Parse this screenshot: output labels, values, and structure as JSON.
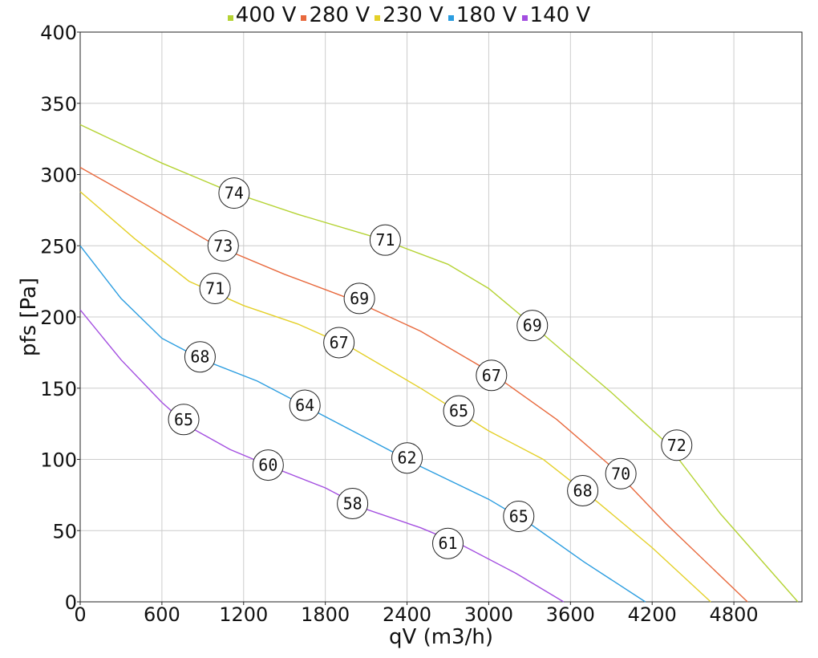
{
  "chart_data": {
    "type": "line",
    "xlabel": "qV (m3/h)",
    "ylabel": "pfs [Pa]",
    "xlim": [
      0,
      5300
    ],
    "ylim": [
      0,
      400
    ],
    "x_ticks": [
      0,
      600,
      1200,
      1800,
      2400,
      3000,
      3600,
      4200,
      4800
    ],
    "y_ticks": [
      0,
      50,
      100,
      150,
      200,
      250,
      300,
      350,
      400
    ],
    "grid": true,
    "legend_position": "top-center",
    "series": [
      {
        "name": "400 V",
        "color": "#b5d334",
        "points": [
          [
            0,
            335
          ],
          [
            600,
            308
          ],
          [
            1100,
            288
          ],
          [
            1600,
            272
          ],
          [
            2200,
            255
          ],
          [
            2700,
            237
          ],
          [
            3000,
            220
          ],
          [
            3300,
            196
          ],
          [
            3900,
            147
          ],
          [
            4300,
            112
          ],
          [
            4700,
            62
          ],
          [
            5270,
            0
          ]
        ],
        "labels": [
          {
            "x": 1130,
            "y": 287,
            "text": "74"
          },
          {
            "x": 2240,
            "y": 254,
            "text": "71"
          },
          {
            "x": 3320,
            "y": 194,
            "text": "69"
          },
          {
            "x": 4380,
            "y": 110,
            "text": "72"
          }
        ]
      },
      {
        "name": "280 V",
        "color": "#e8693d",
        "points": [
          [
            0,
            305
          ],
          [
            500,
            278
          ],
          [
            1000,
            250
          ],
          [
            1500,
            230
          ],
          [
            2000,
            212
          ],
          [
            2500,
            190
          ],
          [
            3000,
            162
          ],
          [
            3500,
            128
          ],
          [
            3900,
            95
          ],
          [
            4300,
            55
          ],
          [
            4900,
            0
          ]
        ],
        "labels": [
          {
            "x": 1050,
            "y": 250,
            "text": "73"
          },
          {
            "x": 2050,
            "y": 213,
            "text": "69"
          },
          {
            "x": 3020,
            "y": 159,
            "text": "67"
          },
          {
            "x": 3970,
            "y": 90,
            "text": "70"
          }
        ]
      },
      {
        "name": "230 V",
        "color": "#e4d028",
        "points": [
          [
            0,
            288
          ],
          [
            400,
            255
          ],
          [
            800,
            225
          ],
          [
            1200,
            208
          ],
          [
            1600,
            195
          ],
          [
            2000,
            178
          ],
          [
            2500,
            150
          ],
          [
            3000,
            120
          ],
          [
            3400,
            100
          ],
          [
            3800,
            70
          ],
          [
            4200,
            38
          ],
          [
            4630,
            0
          ]
        ],
        "labels": [
          {
            "x": 990,
            "y": 220,
            "text": "71"
          },
          {
            "x": 1900,
            "y": 182,
            "text": "67"
          },
          {
            "x": 2780,
            "y": 134,
            "text": "65"
          },
          {
            "x": 3690,
            "y": 78,
            "text": "68"
          }
        ]
      },
      {
        "name": "180 V",
        "color": "#2b9de0",
        "points": [
          [
            0,
            250
          ],
          [
            300,
            213
          ],
          [
            600,
            185
          ],
          [
            900,
            170
          ],
          [
            1300,
            155
          ],
          [
            1700,
            135
          ],
          [
            2100,
            115
          ],
          [
            2500,
            95
          ],
          [
            3000,
            72
          ],
          [
            3300,
            55
          ],
          [
            3700,
            28
          ],
          [
            4150,
            0
          ]
        ],
        "labels": [
          {
            "x": 880,
            "y": 172,
            "text": "68"
          },
          {
            "x": 1650,
            "y": 138,
            "text": "64"
          },
          {
            "x": 2400,
            "y": 101,
            "text": "62"
          },
          {
            "x": 3220,
            "y": 60,
            "text": "65"
          }
        ]
      },
      {
        "name": "140 V",
        "color": "#a34ee0",
        "points": [
          [
            0,
            205
          ],
          [
            300,
            170
          ],
          [
            600,
            140
          ],
          [
            800,
            123
          ],
          [
            1100,
            107
          ],
          [
            1400,
            95
          ],
          [
            1800,
            80
          ],
          [
            2100,
            65
          ],
          [
            2500,
            52
          ],
          [
            2800,
            40
          ],
          [
            3200,
            20
          ],
          [
            3550,
            0
          ]
        ],
        "labels": [
          {
            "x": 760,
            "y": 128,
            "text": "65"
          },
          {
            "x": 1380,
            "y": 96,
            "text": "60"
          },
          {
            "x": 2000,
            "y": 69,
            "text": "58"
          },
          {
            "x": 2700,
            "y": 41,
            "text": "61"
          }
        ]
      }
    ]
  }
}
